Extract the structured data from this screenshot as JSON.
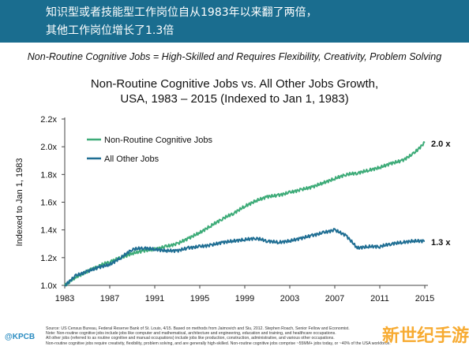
{
  "banner": {
    "line1": "知识型或者技能型工作岗位自从1983年以来翻了两倍，",
    "line2": "其他工作岗位增长了1.3倍"
  },
  "subtitle": "Non-Routine Cognitive Jobs = High-Skilled and Requires Flexibility, Creativity, Problem Solving",
  "sources": [
    "Source: US Census Bureau, Federal Reserve Bank of St. Louis, 4/15. Based on methods from Jaimovich and Siu, 2012. Stephen Roach, Senior Fellow and Economist.",
    "Note: Non-routine cognitive jobs include jobs like computer and mathematical, architecture and engineering, education and training, and healthcare occupations.",
    "All other jobs (referred to as routine cognitive and manual occupations) include jobs like production, construction, administrative, and various other occupations.",
    "Non-routine cognitive jobs require creativity, flexibility, problem solving, and are generally high-skilled. Non-routine cognitive jobs comprise ~55MM+ jobs today, or ~40% of the USA workforce."
  ],
  "logo": "@KPCB",
  "watermark": "新世纪手游",
  "colors": {
    "banner": "#1a6d8f",
    "nonroutine": "#3dab78",
    "other": "#1f6e93"
  },
  "chart_data": {
    "type": "line",
    "title_line1": "Non-Routine Cognitive Jobs vs. All Other Jobs Growth,",
    "title_line2": "USA, 1983 – 2015 (Indexed to Jan 1, 1983)",
    "xlabel": "",
    "ylabel": "Indexed to Jan 1, 1983",
    "xlim": [
      1983,
      2015
    ],
    "ylim": [
      1.0,
      2.2
    ],
    "x_ticks": [
      1983,
      1987,
      1991,
      1995,
      1999,
      2003,
      2007,
      2011,
      2015
    ],
    "y_ticks": [
      {
        "value": 1.0,
        "label": "1.0x"
      },
      {
        "value": 1.2,
        "label": "1.2x"
      },
      {
        "value": 1.4,
        "label": "1.4x"
      },
      {
        "value": 1.6,
        "label": "1.6x"
      },
      {
        "value": 1.8,
        "label": "1.8x"
      },
      {
        "value": 2.0,
        "label": "2.0x"
      },
      {
        "value": 2.2,
        "label": "2.2x"
      }
    ],
    "grid": false,
    "legend": "top-left",
    "series": [
      {
        "name": "Non-Routine Cognitive Jobs",
        "end_label": "2.0 x",
        "color": "#3dab78",
        "x": [
          1983,
          1984,
          1985,
          1986,
          1987,
          1988,
          1989,
          1990,
          1991,
          1992,
          1993,
          1994,
          1995,
          1996,
          1997,
          1998,
          1999,
          2000,
          2001,
          2002,
          2003,
          2004,
          2005,
          2006,
          2007,
          2008,
          2009,
          2010,
          2011,
          2012,
          2013,
          2014,
          2015
        ],
        "y": [
          1.0,
          1.06,
          1.1,
          1.14,
          1.17,
          1.2,
          1.23,
          1.25,
          1.26,
          1.28,
          1.3,
          1.34,
          1.38,
          1.43,
          1.48,
          1.52,
          1.57,
          1.61,
          1.64,
          1.65,
          1.67,
          1.69,
          1.71,
          1.74,
          1.77,
          1.8,
          1.81,
          1.83,
          1.85,
          1.88,
          1.9,
          1.95,
          2.03
        ]
      },
      {
        "name": "All Other Jobs",
        "end_label": "1.3 x",
        "color": "#1f6e93",
        "x": [
          1983,
          1984,
          1985,
          1986,
          1987,
          1988,
          1989,
          1990,
          1991,
          1992,
          1993,
          1994,
          1995,
          1996,
          1997,
          1998,
          1999,
          2000,
          2001,
          2002,
          2003,
          2004,
          2005,
          2006,
          2007,
          2008,
          2009,
          2010,
          2011,
          2012,
          2013,
          2014,
          2015
        ],
        "y": [
          1.0,
          1.07,
          1.1,
          1.13,
          1.15,
          1.2,
          1.26,
          1.27,
          1.26,
          1.25,
          1.25,
          1.27,
          1.28,
          1.29,
          1.31,
          1.32,
          1.33,
          1.34,
          1.32,
          1.31,
          1.32,
          1.34,
          1.36,
          1.38,
          1.4,
          1.36,
          1.27,
          1.28,
          1.28,
          1.3,
          1.31,
          1.32,
          1.32
        ]
      }
    ]
  }
}
